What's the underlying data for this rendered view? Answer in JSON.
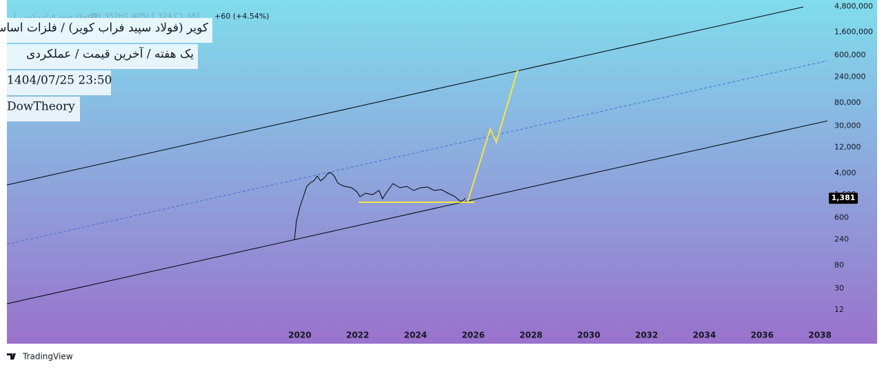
{
  "chart_data": {
    "type": "line",
    "header": {
      "symbol": "فولاد سپید فراب کویر، 1W",
      "ohlc": [
        {
          "value": 1352,
          "label": "O1,352"
        },
        {
          "value": 1405,
          "label": "H1,405"
        },
        {
          "value": 1324,
          "label": "L1,324"
        },
        {
          "value": 1381,
          "label": "C1,381"
        }
      ],
      "change": "+60 (+4.54%)"
    },
    "title_lines": [
      "کویر (فولاد سپید فراب کویر) / فلزات اساسی",
      "یک هفته / آخرین قیمت / عملکردی",
      "1404/07/25 23:50",
      "DowTheory"
    ],
    "log_scale": true,
    "xlim": [
      2009.86,
      2038.26
    ],
    "ylim": [
      2.85,
      6300000
    ],
    "xticks": [
      2020,
      2022,
      2024,
      2026,
      2028,
      2030,
      2032,
      2034,
      2036,
      2038
    ],
    "yticks": [
      {
        "value": 4800000,
        "label": "4,800,000"
      },
      {
        "value": 1600000,
        "label": "1,600,000"
      },
      {
        "value": 600000,
        "label": "600,000"
      },
      {
        "value": 240000,
        "label": "240,000"
      },
      {
        "value": 80000,
        "label": "80,000"
      },
      {
        "value": 30000,
        "label": "30,000"
      },
      {
        "value": 12000,
        "label": "12,000"
      },
      {
        "value": 4000,
        "label": "4,000"
      },
      {
        "value": 1600,
        "label": "1,600"
      },
      600,
      240,
      80,
      30,
      12
    ],
    "color": "#000000",
    "x": [
      2019.81,
      2019.88,
      2020.0,
      2020.12,
      2020.24,
      2020.36,
      2020.48,
      2020.6,
      2020.72,
      2020.84,
      2020.95,
      2021.07,
      2021.19,
      2021.31,
      2021.43,
      2021.55,
      2021.79,
      2021.98,
      2022.08,
      2022.27,
      2022.51,
      2022.74,
      2022.86,
      2022.98,
      2023.22,
      2023.46,
      2023.7,
      2023.94,
      2024.18,
      2024.42,
      2024.65,
      2024.89,
      2025.13,
      2025.37,
      2025.56,
      2025.66,
      2025.73
    ],
    "values": [
      232,
      527,
      948,
      1472,
      2286,
      2649,
      2891,
      3548,
      2891,
      3251,
      3882,
      4111,
      3548,
      2649,
      2427,
      2286,
      2158,
      1808,
      1472,
      1706,
      1607,
      1919,
      1349,
      1706,
      2570,
      2158,
      2286,
      1919,
      2158,
      2223,
      1919,
      2000,
      1706,
      1472,
      1200,
      1271,
      1381
    ],
    "last_price": {
      "value": 1381,
      "label": "1,381"
    },
    "drawings": [
      {
        "color": "#000000",
        "style": "solid",
        "x": [
          2009.86,
          2037.42
        ],
        "values": [
          2427,
          4690000
        ]
      },
      {
        "color": "#3b6fe0",
        "style": "dashed",
        "x": [
          2009.86,
          2038.26
        ],
        "values": [
          195,
          476000
        ]
      },
      {
        "color": "#000000",
        "style": "solid",
        "x": [
          2009.86,
          2038.26
        ],
        "values": [
          15.6,
          37000
        ]
      },
      {
        "color": "#f5e642",
        "style": "solid",
        "x": [
          2022.03,
          2026.04
        ],
        "values": [
          1165,
          1165
        ]
      },
      {
        "color": "#f5e642",
        "style": "solid",
        "x": [
          2025.8,
          2026.59,
          2026.8,
          2027.54
        ],
        "values": [
          1165,
          26100,
          15000,
          325000
        ]
      }
    ],
    "footer": "TradingView"
  }
}
